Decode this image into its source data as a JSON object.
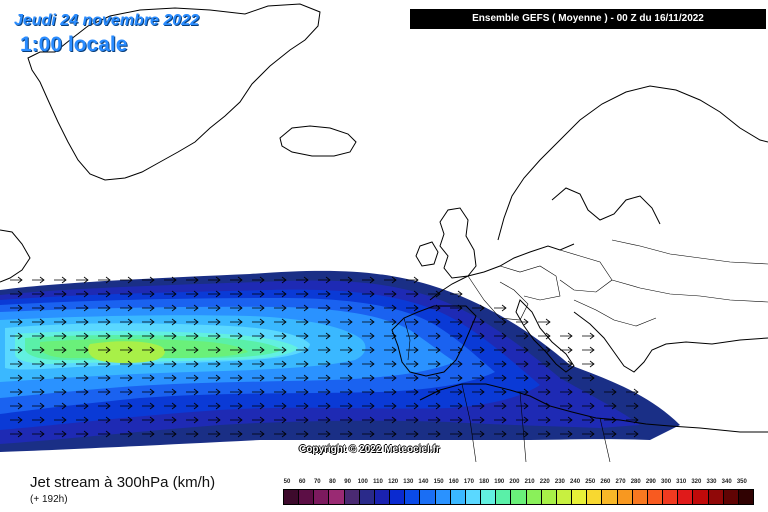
{
  "header": {
    "date": "Jeudi 24 novembre 2022",
    "local_time": "1:00 locale",
    "run_info": "Ensemble GEFS  ( Moyenne )  - 00 Z du 16/11/2022"
  },
  "map": {
    "copyright": "Copyright © 2022 Meteociel.fr",
    "wind_arrow_direction": "east",
    "coastline_color": "#000000"
  },
  "footer": {
    "parameter": "Jet stream à 300hPa (km/h)",
    "lead_time": "(+ 192h)"
  },
  "color_scale": {
    "labels": [
      "50",
      "60",
      "70",
      "80",
      "90",
      "100",
      "110",
      "120",
      "130",
      "140",
      "150",
      "160",
      "170",
      "180",
      "190",
      "200",
      "210",
      "220",
      "230",
      "240",
      "250",
      "260",
      "270",
      "280",
      "290",
      "300",
      "310",
      "320",
      "330",
      "340",
      "350"
    ],
    "colors": [
      "#3d0a2c",
      "#5c0e45",
      "#7c1a5e",
      "#9a2a73",
      "#4a2a72",
      "#2a2a8a",
      "#1a22b0",
      "#0a2ad0",
      "#0a4ae8",
      "#1a6ef4",
      "#2a92ff",
      "#3ab8ff",
      "#5ad8ff",
      "#62f0e0",
      "#5af0a8",
      "#6af07a",
      "#8af05a",
      "#a8f048",
      "#c8f040",
      "#e8f038",
      "#f8d830",
      "#f8b828",
      "#f89820",
      "#f87820",
      "#f85a20",
      "#f03a20",
      "#e01a1a",
      "#c00a0a",
      "#900808",
      "#600404",
      "#300202"
    ]
  }
}
